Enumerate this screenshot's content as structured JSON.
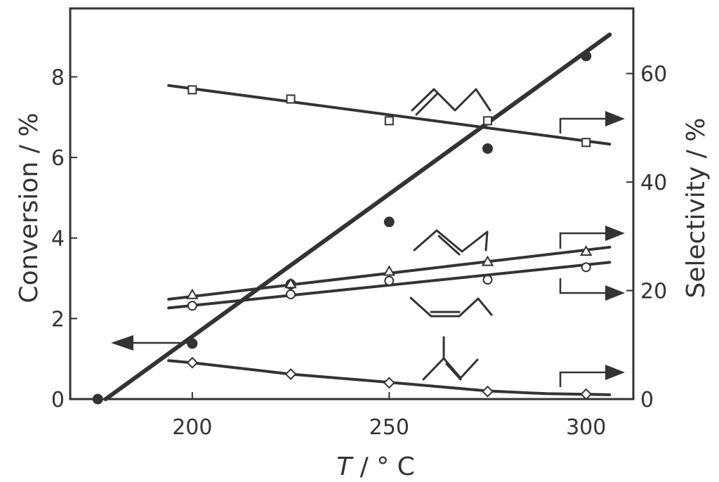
{
  "chart_data": {
    "type": "line",
    "xlabel_italic": "T",
    "xlabel_rest": " / ° C",
    "ylabel_left": "Conversion / %",
    "ylabel_right": "Selectivity / %",
    "xlim": [
      169,
      312
    ],
    "ylim_left": [
      0,
      9.7
    ],
    "ylim_right": [
      0,
      72
    ],
    "x_ticks": [
      200,
      250,
      300
    ],
    "y_left_ticks": [
      0,
      2,
      4,
      6,
      8
    ],
    "y_right_ticks": [
      0,
      20,
      40,
      60
    ],
    "grid": false,
    "series": [
      {
        "axis": "left",
        "marker": "filled-circle",
        "x": [
          176,
          200,
          225,
          250,
          275,
          300
        ],
        "y": [
          0.0,
          1.38,
          2.85,
          4.4,
          6.22,
          8.52
        ],
        "fit": [
          [
            178,
            0.0
          ],
          [
            306,
            9.05
          ]
        ]
      },
      {
        "axis": "right",
        "marker": "open-square",
        "x": [
          200,
          225,
          250,
          275,
          300
        ],
        "y": [
          57.0,
          55.3,
          51.3,
          51.3,
          47.3
        ],
        "fit": [
          [
            194,
            57.8
          ],
          [
            306,
            47.0
          ]
        ]
      },
      {
        "axis": "right",
        "marker": "open-triangle",
        "x": [
          200,
          225,
          250,
          275,
          300
        ],
        "y": [
          19.2,
          21.2,
          23.5,
          25.3,
          27.2
        ],
        "fit": [
          [
            194,
            18.4
          ],
          [
            306,
            28.0
          ]
        ]
      },
      {
        "axis": "right",
        "marker": "open-circle",
        "x": [
          200,
          225,
          250,
          275,
          300
        ],
        "y": [
          17.2,
          19.3,
          21.8,
          22.0,
          24.3
        ],
        "fit": [
          [
            194,
            16.8
          ],
          [
            306,
            25.2
          ]
        ]
      },
      {
        "axis": "right",
        "marker": "open-diamond",
        "x": [
          200,
          225,
          250,
          275,
          300
        ],
        "y": [
          6.7,
          4.6,
          3.0,
          1.4,
          0.9
        ],
        "fit": [
          [
            194,
            7.1
          ],
          [
            200,
            6.7
          ],
          [
            225,
            4.6
          ],
          [
            250,
            3.1
          ],
          [
            275,
            1.5
          ],
          [
            290,
            1.0
          ],
          [
            306,
            0.8
          ]
        ]
      }
    ]
  }
}
